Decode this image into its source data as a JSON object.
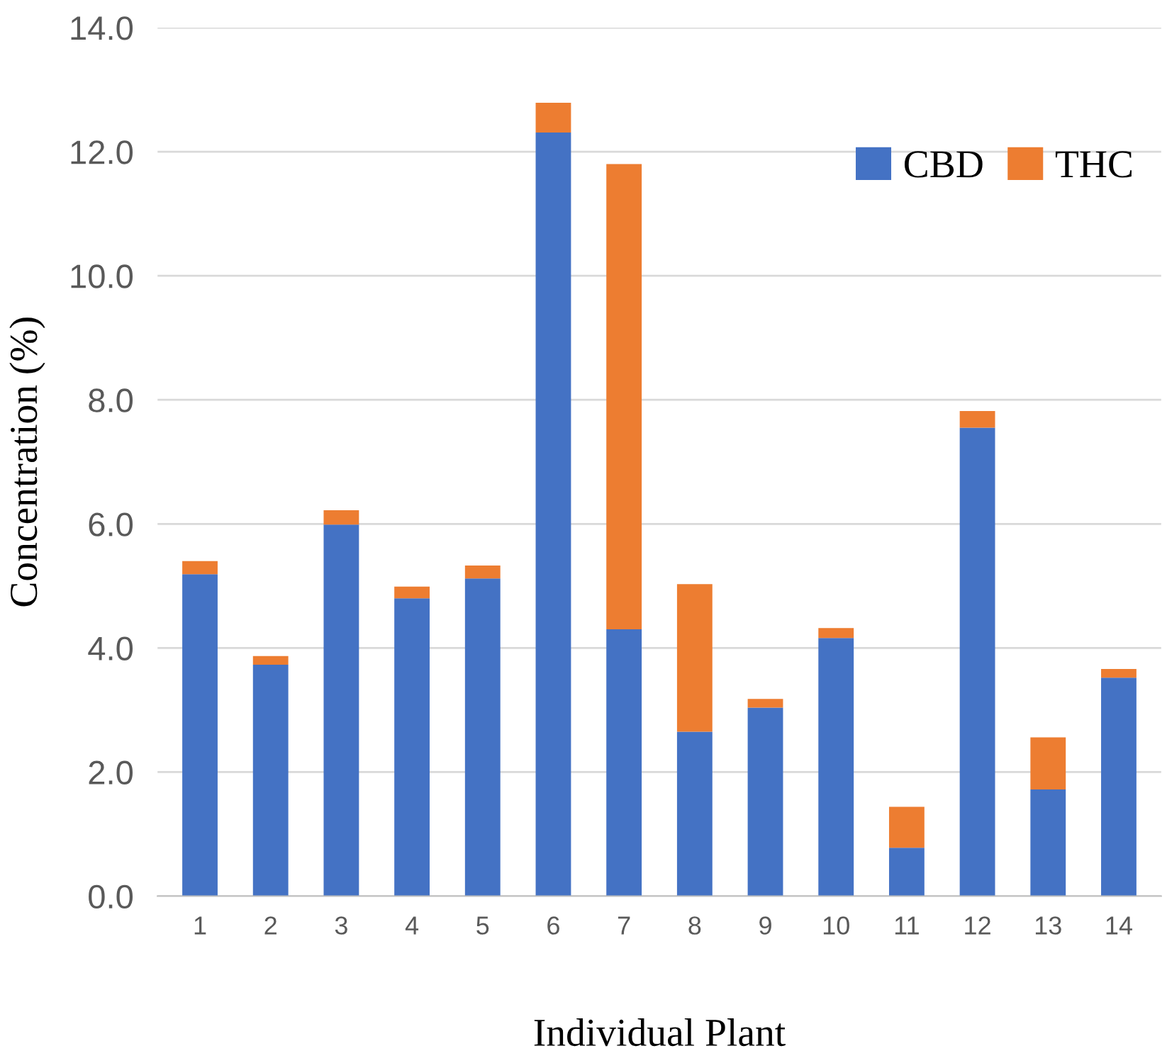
{
  "chart_data": {
    "type": "bar",
    "stacked": true,
    "xlabel": "Individual Plant",
    "ylabel": "Concentration (%)",
    "categories": [
      "1",
      "2",
      "3",
      "4",
      "5",
      "6",
      "7",
      "8",
      "9",
      "10",
      "11",
      "12",
      "13",
      "14"
    ],
    "series": [
      {
        "name": "CBD",
        "color": "#4472c4",
        "values": [
          5.19,
          3.73,
          5.99,
          4.8,
          5.12,
          12.31,
          4.3,
          2.65,
          3.04,
          4.16,
          0.78,
          7.55,
          1.72,
          3.52
        ]
      },
      {
        "name": "THC",
        "color": "#ed7d31",
        "values": [
          0.21,
          0.14,
          0.23,
          0.19,
          0.21,
          0.48,
          7.5,
          2.38,
          0.14,
          0.16,
          0.66,
          0.27,
          0.84,
          0.14
        ]
      }
    ],
    "ylim": [
      0,
      14
    ],
    "yticks": [
      {
        "value": 0,
        "label": "0.0"
      },
      {
        "value": 2,
        "label": "2.0"
      },
      {
        "value": 4,
        "label": "4.0"
      },
      {
        "value": 6,
        "label": "6.0"
      },
      {
        "value": 8,
        "label": "8.0"
      },
      {
        "value": 10,
        "label": "10.0"
      },
      {
        "value": 12,
        "label": "12.0"
      },
      {
        "value": 14,
        "label": "14.0"
      }
    ],
    "grid": "y",
    "legend": "top right"
  }
}
